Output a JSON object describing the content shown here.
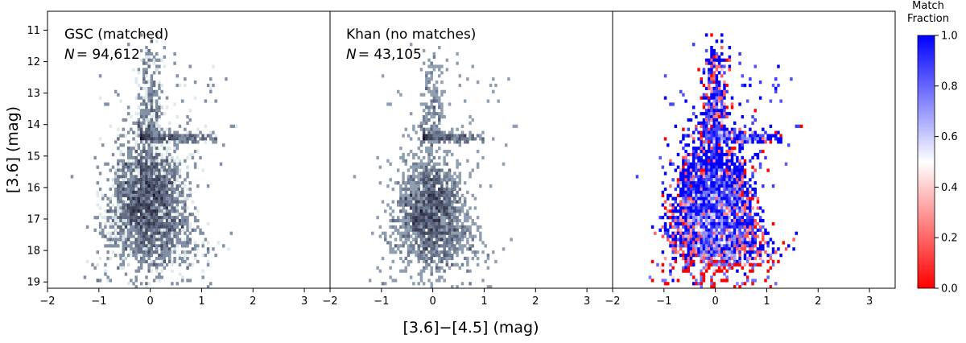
{
  "chart_data": [
    {
      "type": "heatmap",
      "panel": "left",
      "annotation_line1": "GSC (matched)",
      "annotation_n_label": "N",
      "annotation_n_value": "= 94,612",
      "n_sources": 94612,
      "xlim": [
        -2,
        3.5
      ],
      "ylim": [
        19.2,
        10.4
      ],
      "x_inverted": false,
      "y_inverted": true,
      "xticks": [
        -2,
        -1,
        0,
        1,
        2,
        3
      ],
      "yticks": [
        11,
        12,
        13,
        14,
        15,
        16,
        17,
        18,
        19
      ],
      "density_core": {
        "x_center": -0.05,
        "y_center": 16.6,
        "x_sigma": 0.3,
        "y_sigma": 1.0
      },
      "horizontal_feature": {
        "y": 14.4,
        "x_range": [
          -0.2,
          1.3
        ]
      },
      "vertical_plume": {
        "x": 0.0,
        "y_range": [
          11.0,
          14.4
        ]
      },
      "colormap": "bone_r"
    },
    {
      "type": "heatmap",
      "panel": "middle",
      "annotation_line1": "Khan (no matches)",
      "annotation_n_label": "N",
      "annotation_n_value": "= 43,105",
      "n_sources": 43105,
      "xlim": [
        -2,
        3.5
      ],
      "ylim": [
        19.2,
        10.4
      ],
      "xticks": [
        -2,
        -1,
        0,
        1,
        2,
        3
      ],
      "density_core": {
        "x_center": -0.05,
        "y_center": 16.9,
        "x_sigma": 0.28,
        "y_sigma": 0.9
      },
      "horizontal_feature": {
        "y": 14.4,
        "x_range": [
          -0.2,
          1.0
        ]
      },
      "vertical_plume": {
        "x": 0.0,
        "y_range": [
          11.5,
          14.4
        ]
      },
      "colormap": "bone_r"
    },
    {
      "type": "heatmap",
      "panel": "right",
      "value": "match_fraction",
      "xlim": [
        -2,
        3.5
      ],
      "ylim": [
        19.2,
        10.4
      ],
      "xticks": [
        -2,
        -1,
        0,
        1,
        2,
        3
      ],
      "trend": "match fraction near 1 for bright stars; near 0 for the faint tail (y > 18.5)",
      "colormap": "bwr_r",
      "colorbar": {
        "label_line1": "Match",
        "label_line2": "Fraction",
        "ticks": [
          0.0,
          0.2,
          0.4,
          0.6,
          0.8,
          1.0
        ],
        "tick_labels": [
          "0.0",
          "0.2",
          "0.4",
          "0.6",
          "0.8",
          "1.0"
        ],
        "range": [
          0.0,
          1.0
        ]
      }
    }
  ],
  "axes": {
    "xlabel": "[3.6]−[4.5] (mag)",
    "ylabel": "[3.6] (mag)",
    "xtick_labels": [
      "−2",
      "−1",
      "0",
      "1",
      "2",
      "3"
    ],
    "ytick_labels": [
      "11",
      "12",
      "13",
      "14",
      "15",
      "16",
      "17",
      "18",
      "19"
    ]
  },
  "colors": {
    "density_dark": "#1d1a2e",
    "density_light": "#c8d6d6",
    "fraction_high": "#0000ff",
    "fraction_mid": "#ffffff",
    "fraction_low": "#ff0000"
  }
}
